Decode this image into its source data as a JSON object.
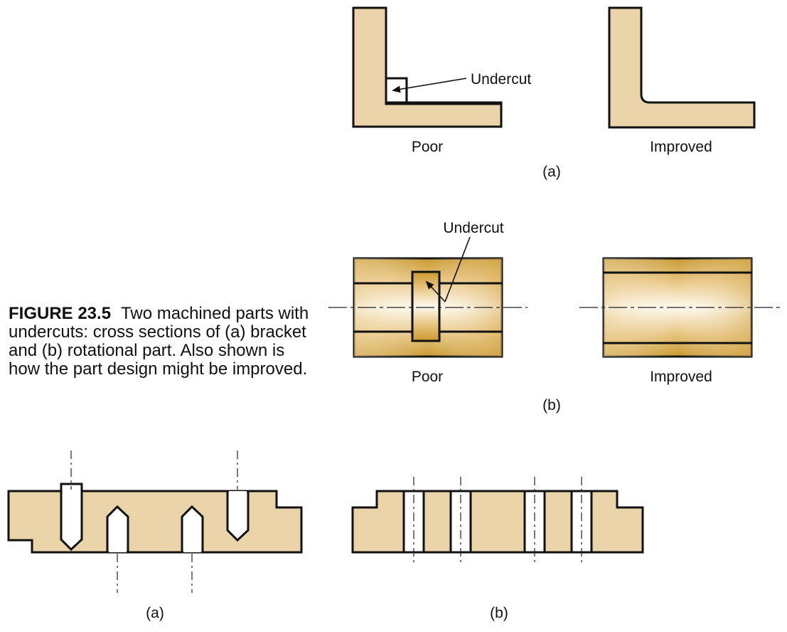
{
  "colors": {
    "part_fill": "#ead3a8",
    "outline": "#111111",
    "grad_dark": "#c9982f",
    "grad_mid": "#e8c57d",
    "grad_light": "#fffaf0"
  },
  "caption": {
    "number": "FIGURE 23.5",
    "text": "Two machined parts with undercuts: cross sections of (a) bracket and (b) rotational part. Also shown is how the part design might be improved."
  },
  "top_a": {
    "poor_label": "Poor",
    "improved_label": "Improved",
    "undercut_label": "Undercut",
    "panel_label": "(a)"
  },
  "top_b": {
    "poor_label": "Poor",
    "improved_label": "Improved",
    "undercut_label": "Undercut",
    "panel_label": "(b)"
  },
  "bottom": {
    "label_a": "(a)",
    "label_b": "(b)"
  }
}
